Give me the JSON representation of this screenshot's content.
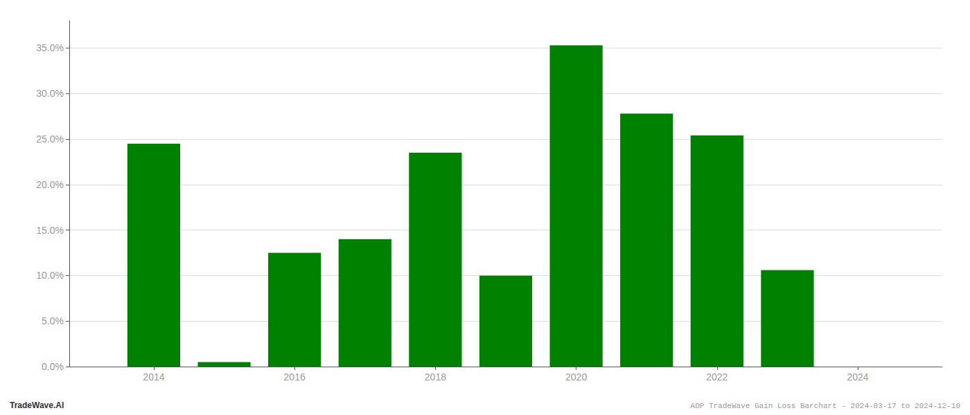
{
  "chart_data": {
    "type": "bar",
    "title": "ADP TradeWave Gain Loss Barchart - 2024-03-17 to 2024-12-10",
    "annotations": [
      "TradeWave.AI"
    ],
    "x": [
      2014,
      2015,
      2016,
      2017,
      2018,
      2019,
      2020,
      2021,
      2022,
      2023,
      2024
    ],
    "values": [
      0.245,
      0.005,
      0.125,
      0.14,
      0.235,
      0.1,
      0.353,
      0.278,
      0.254,
      0.106,
      0.0
    ],
    "color": "#008000",
    "xlim": [
      2012.8,
      2025.2
    ],
    "xticks": [
      2014,
      2016,
      2018,
      2020,
      2022,
      2024
    ],
    "ylim": [
      0,
      0.38
    ],
    "yticks": [
      {
        "value": 0.0,
        "label": "0.0%"
      },
      {
        "value": 0.05,
        "label": "5.0%"
      },
      {
        "value": 0.1,
        "label": "10.0%"
      },
      {
        "value": 0.15,
        "label": "15.0%"
      },
      {
        "value": 0.2,
        "label": "20.0%"
      },
      {
        "value": 0.25,
        "label": "25.0%"
      },
      {
        "value": 0.3,
        "label": "30.0%"
      },
      {
        "value": 0.35,
        "label": "35.0%"
      }
    ],
    "grid": true
  }
}
